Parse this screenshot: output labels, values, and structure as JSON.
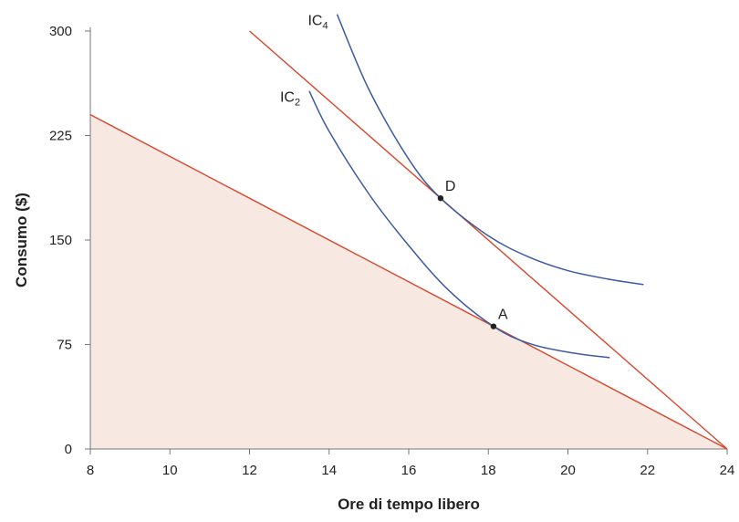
{
  "chart_data": {
    "type": "line",
    "xlabel": "Ore di tempo libero",
    "ylabel": "Consumo ($)",
    "xlim": [
      8,
      24
    ],
    "ylim": [
      0,
      300
    ],
    "xticks": [
      8,
      10,
      12,
      14,
      16,
      18,
      20,
      22,
      24
    ],
    "yticks": [
      0,
      75,
      150,
      225,
      300
    ],
    "grid": false,
    "shaded_region": {
      "points": [
        [
          8,
          0
        ],
        [
          8,
          240
        ],
        [
          24,
          0
        ]
      ],
      "color": "#f7e8e2"
    },
    "budget_lines": [
      {
        "points": [
          [
            8,
            240
          ],
          [
            24,
            0
          ]
        ],
        "color": "#d9442a"
      },
      {
        "points": [
          [
            12,
            300
          ],
          [
            24,
            0
          ]
        ],
        "color": "#d9442a"
      }
    ],
    "indifference_curves": [
      {
        "label": "IC",
        "sub": "2",
        "color": "#3b5aa3",
        "points": [
          [
            13.5,
            257
          ],
          [
            14,
            228
          ],
          [
            15,
            183
          ],
          [
            16,
            146
          ],
          [
            17,
            114
          ],
          [
            18.13,
            88
          ],
          [
            19,
            76
          ],
          [
            20,
            69.5
          ],
          [
            21.05,
            65.5
          ]
        ]
      },
      {
        "label": "IC",
        "sub": "4",
        "color": "#3b5aa3",
        "points": [
          [
            14.2,
            312
          ],
          [
            15,
            258
          ],
          [
            16,
            208
          ],
          [
            16.8,
            180
          ],
          [
            18,
            153
          ],
          [
            19,
            138
          ],
          [
            20,
            128
          ],
          [
            21,
            122
          ],
          [
            21.9,
            118
          ]
        ]
      }
    ],
    "points": [
      {
        "label": "A",
        "x": 18.13,
        "y": 88
      },
      {
        "label": "D",
        "x": 16.8,
        "y": 180
      }
    ]
  }
}
